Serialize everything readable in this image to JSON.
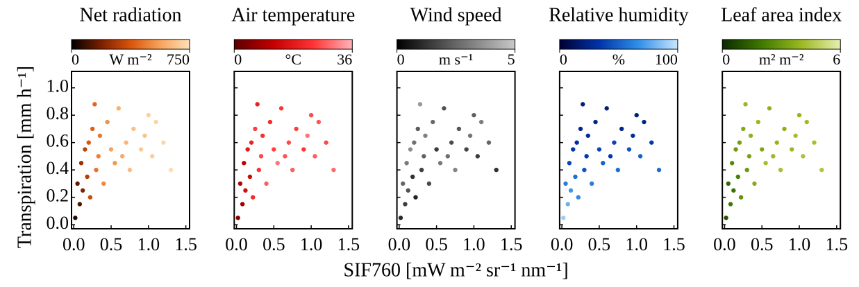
{
  "chart_data": [
    {
      "type": "scatter",
      "title": "Net radiation",
      "ylabel": "Transpiration [mm h⁻¹]",
      "colorbar": {
        "lim": [
          0,
          750
        ],
        "ticks": [
          0,
          750
        ],
        "label": "W m⁻²",
        "colormap": [
          "#000000",
          "#7a1f00",
          "#d9540a",
          "#f7a35c",
          "#ffe0b8"
        ]
      },
      "x": [
        0.02,
        0.05,
        0.08,
        0.1,
        0.12,
        0.15,
        0.18,
        0.2,
        0.22,
        0.25,
        0.28,
        0.3,
        0.33,
        0.35,
        0.4,
        0.45,
        0.5,
        0.55,
        0.6,
        0.65,
        0.7,
        0.75,
        0.8,
        0.9,
        0.95,
        1.0,
        1.05,
        1.1,
        1.2,
        1.3
      ],
      "values": [
        0.05,
        0.3,
        0.15,
        0.45,
        0.25,
        0.55,
        0.35,
        0.6,
        0.2,
        0.7,
        0.88,
        0.4,
        0.5,
        0.65,
        0.3,
        0.75,
        0.55,
        0.45,
        0.85,
        0.5,
        0.6,
        0.4,
        0.7,
        0.55,
        0.65,
        0.8,
        0.5,
        0.75,
        0.6,
        0.4
      ],
      "color_values": [
        50,
        150,
        120,
        250,
        200,
        320,
        300,
        380,
        350,
        400,
        420,
        450,
        480,
        460,
        500,
        520,
        560,
        540,
        600,
        580,
        620,
        640,
        650,
        680,
        660,
        700,
        690,
        710,
        720,
        740
      ],
      "xlim": [
        -0.03,
        1.55
      ],
      "ylim": [
        -0.03,
        1.12
      ],
      "xticks": [
        {
          "value": 0,
          "label": "0.0"
        },
        0.5,
        {
          "value": 1,
          "label": "1.0"
        },
        1.5
      ],
      "yticks": [
        {
          "value": 0,
          "label": "0.0"
        },
        0.2,
        0.4,
        0.6,
        0.8,
        {
          "value": 1,
          "label": "1.0"
        }
      ]
    },
    {
      "type": "scatter",
      "title": "Air temperature",
      "colorbar": {
        "lim": [
          0,
          36
        ],
        "ticks": [
          0,
          36
        ],
        "label": "°C",
        "colormap": [
          "#5c0000",
          "#c40000",
          "#ff3333",
          "#ffb3b8"
        ]
      },
      "x": [
        0.02,
        0.05,
        0.08,
        0.1,
        0.12,
        0.15,
        0.18,
        0.2,
        0.22,
        0.25,
        0.28,
        0.3,
        0.33,
        0.35,
        0.4,
        0.45,
        0.5,
        0.55,
        0.6,
        0.65,
        0.7,
        0.75,
        0.8,
        0.9,
        0.95,
        1.0,
        1.05,
        1.1,
        1.2,
        1.3
      ],
      "values": [
        0.05,
        0.3,
        0.15,
        0.45,
        0.25,
        0.55,
        0.35,
        0.6,
        0.2,
        0.7,
        0.88,
        0.4,
        0.5,
        0.65,
        0.3,
        0.75,
        0.55,
        0.45,
        0.85,
        0.5,
        0.6,
        0.4,
        0.7,
        0.55,
        0.65,
        0.8,
        0.5,
        0.75,
        0.6,
        0.4
      ],
      "color_values": [
        5,
        10,
        8,
        12,
        15,
        18,
        14,
        20,
        22,
        25,
        20,
        24,
        26,
        23,
        28,
        22,
        25,
        30,
        24,
        27,
        26,
        28,
        25,
        24,
        30,
        26,
        28,
        27,
        26,
        29
      ],
      "xlim": [
        -0.03,
        1.55
      ],
      "ylim": [
        -0.03,
        1.12
      ],
      "xticks": [
        {
          "value": 0,
          "label": "0.0"
        },
        0.5,
        {
          "value": 1,
          "label": "1.0"
        },
        1.5
      ],
      "yticks": [
        0,
        0.2,
        0.4,
        0.6,
        0.8,
        1
      ]
    },
    {
      "type": "scatter",
      "title": "Wind speed",
      "xlabel": "SIF760 [mW m⁻² sr⁻¹ nm⁻¹]",
      "colorbar": {
        "lim": [
          0,
          5
        ],
        "ticks": [
          0,
          5
        ],
        "label": "m s⁻¹",
        "colormap": [
          "#000000",
          "#666666",
          "#c8c8c8"
        ]
      },
      "x": [
        0.02,
        0.05,
        0.08,
        0.1,
        0.12,
        0.15,
        0.18,
        0.2,
        0.22,
        0.25,
        0.28,
        0.3,
        0.33,
        0.35,
        0.4,
        0.45,
        0.5,
        0.55,
        0.6,
        0.65,
        0.7,
        0.75,
        0.8,
        0.9,
        0.95,
        1.0,
        1.05,
        1.1,
        1.2,
        1.3
      ],
      "values": [
        0.05,
        0.3,
        0.15,
        0.45,
        0.25,
        0.55,
        0.35,
        0.6,
        0.2,
        0.7,
        0.88,
        0.4,
        0.5,
        0.65,
        0.3,
        0.75,
        0.55,
        0.45,
        0.85,
        0.5,
        0.6,
        0.4,
        0.7,
        0.55,
        0.65,
        0.8,
        0.5,
        0.75,
        0.6,
        0.4
      ],
      "color_values": [
        1,
        2.5,
        1.5,
        3,
        2,
        3.5,
        1.2,
        2.8,
        0.8,
        2.2,
        3.8,
        1.6,
        2.4,
        3.2,
        1.8,
        2.6,
        1.4,
        3,
        2,
        2.7,
        1.9,
        3.3,
        2.1,
        1.7,
        2.9,
        2.3,
        1.5,
        3.1,
        2.5,
        1.2
      ],
      "xlim": [
        -0.03,
        1.55
      ],
      "ylim": [
        -0.03,
        1.12
      ],
      "xticks": [
        {
          "value": 0,
          "label": "0.0"
        },
        0.5,
        {
          "value": 1,
          "label": "1.0"
        },
        1.5
      ],
      "yticks": [
        0,
        0.2,
        0.4,
        0.6,
        0.8,
        1
      ]
    },
    {
      "type": "scatter",
      "title": "Relative humidity",
      "colorbar": {
        "lim": [
          0,
          100
        ],
        "ticks": [
          0,
          100
        ],
        "label": "%",
        "colormap": [
          "#000033",
          "#0033aa",
          "#2f8fe8",
          "#c8e6ff"
        ]
      },
      "x": [
        0.02,
        0.05,
        0.08,
        0.1,
        0.12,
        0.15,
        0.18,
        0.2,
        0.22,
        0.25,
        0.28,
        0.3,
        0.33,
        0.35,
        0.4,
        0.45,
        0.5,
        0.55,
        0.6,
        0.65,
        0.7,
        0.75,
        0.8,
        0.9,
        0.95,
        1.0,
        1.05,
        1.1,
        1.2,
        1.3
      ],
      "values": [
        0.05,
        0.3,
        0.15,
        0.45,
        0.25,
        0.55,
        0.35,
        0.6,
        0.2,
        0.7,
        0.88,
        0.4,
        0.5,
        0.65,
        0.3,
        0.75,
        0.55,
        0.45,
        0.85,
        0.5,
        0.6,
        0.4,
        0.7,
        0.55,
        0.65,
        0.8,
        0.5,
        0.75,
        0.6,
        0.4
      ],
      "color_values": [
        90,
        60,
        80,
        40,
        70,
        35,
        55,
        30,
        65,
        25,
        20,
        45,
        35,
        30,
        60,
        25,
        40,
        50,
        20,
        35,
        40,
        55,
        25,
        45,
        30,
        20,
        50,
        25,
        35,
        55
      ],
      "xlim": [
        -0.03,
        1.55
      ],
      "ylim": [
        -0.03,
        1.12
      ],
      "xticks": [
        {
          "value": 0,
          "label": "0.0"
        },
        0.5,
        {
          "value": 1,
          "label": "1.0"
        },
        1.5
      ],
      "yticks": [
        0,
        0.2,
        0.4,
        0.6,
        0.8,
        1
      ]
    },
    {
      "type": "scatter",
      "title": "Leaf area index",
      "colorbar": {
        "lim": [
          0,
          6
        ],
        "ticks": [
          0,
          6
        ],
        "label": "m² m⁻²",
        "colormap": [
          "#0a2a00",
          "#3f7a00",
          "#9ab820",
          "#e8f0b0"
        ]
      },
      "x": [
        0.02,
        0.05,
        0.08,
        0.1,
        0.12,
        0.15,
        0.18,
        0.2,
        0.22,
        0.25,
        0.28,
        0.3,
        0.33,
        0.35,
        0.4,
        0.45,
        0.5,
        0.55,
        0.6,
        0.65,
        0.7,
        0.75,
        0.8,
        0.9,
        0.95,
        1.0,
        1.05,
        1.1,
        1.2,
        1.3
      ],
      "values": [
        0.05,
        0.3,
        0.15,
        0.45,
        0.25,
        0.55,
        0.35,
        0.6,
        0.2,
        0.7,
        0.88,
        0.4,
        0.5,
        0.65,
        0.3,
        0.75,
        0.55,
        0.45,
        0.85,
        0.5,
        0.6,
        0.4,
        0.7,
        0.55,
        0.65,
        0.8,
        0.5,
        0.75,
        0.6,
        0.4
      ],
      "color_values": [
        1,
        1.5,
        2,
        2.5,
        1.8,
        3,
        2.2,
        3.2,
        2.8,
        3.5,
        4,
        3,
        3.3,
        3.8,
        3.6,
        4,
        3.4,
        4.2,
        3.8,
        4.1,
        3.9,
        4.3,
        3.7,
        4,
        4.2,
        3.9,
        4.4,
        4.1,
        4.3,
        4.5
      ],
      "xlim": [
        -0.03,
        1.55
      ],
      "ylim": [
        -0.03,
        1.12
      ],
      "xticks": [
        {
          "value": 0,
          "label": "0.0"
        },
        0.5,
        {
          "value": 1,
          "label": "1.0"
        },
        1.5
      ],
      "yticks": [
        0,
        0.2,
        0.4,
        0.6,
        0.8,
        1
      ]
    }
  ]
}
